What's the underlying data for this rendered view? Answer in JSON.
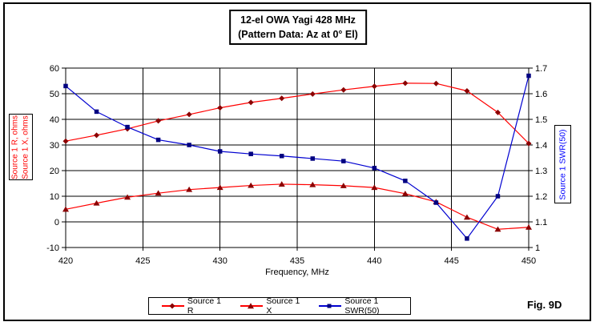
{
  "chart_data": {
    "type": "line",
    "title": "12-el OWA Yagi 428 MHz",
    "subtitle": "(Pattern Data: Az at 0° El)",
    "xlabel": "Frequency, MHz",
    "ylabel_left": [
      "Source 1 R, ohms",
      "Source 1 X, ohms"
    ],
    "ylabel_right": "Source 1 SWR(50)",
    "fig_label": "Fig. 9D",
    "x": [
      420,
      422,
      424,
      426,
      428,
      430,
      432,
      434,
      436,
      438,
      440,
      442,
      444,
      446,
      448,
      450
    ],
    "x_ticks": [
      420,
      425,
      430,
      435,
      440,
      445,
      450
    ],
    "xlim": [
      420,
      450
    ],
    "ylim_left": [
      -10,
      60
    ],
    "y_ticks_left": [
      60,
      50,
      40,
      30,
      20,
      10,
      0,
      -10
    ],
    "ylim_right": [
      1.0,
      1.7
    ],
    "y_ticks_right": [
      1.7,
      1.6,
      1.5,
      1.4,
      1.3,
      1.2,
      1.1,
      1.0
    ],
    "grid": true,
    "legend_position": "bottom",
    "colors": {
      "r_line": "#ff0000",
      "r_marker": "#8b0000",
      "x_line": "#ff0000",
      "x_marker": "#8b0000",
      "swr_line": "#0000d0",
      "swr_marker": "#000080",
      "axis_label_left": "#ff0000",
      "axis_label_right": "#0000ff",
      "grid_color": "#000000"
    },
    "series": [
      {
        "name": "Source 1 R",
        "axis": "left",
        "marker": "diamond",
        "line_color": "#ff0000",
        "marker_color": "#8b0000",
        "values": [
          31.5,
          33.8,
          36.3,
          39.4,
          41.9,
          44.5,
          46.6,
          48.2,
          49.9,
          51.5,
          52.9,
          54.1,
          54.0,
          51.1,
          42.7,
          30.6
        ]
      },
      {
        "name": "Source 1 X",
        "axis": "left",
        "marker": "triangle",
        "line_color": "#ff0000",
        "marker_color": "#8b0000",
        "values": [
          4.9,
          7.3,
          9.6,
          11.2,
          12.6,
          13.4,
          14.2,
          14.7,
          14.5,
          14.1,
          13.4,
          11.0,
          7.8,
          1.8,
          -2.9,
          -2.1
        ]
      },
      {
        "name": "Source 1 SWR(50)",
        "axis": "right",
        "marker": "square",
        "line_color": "#0000d0",
        "marker_color": "#000080",
        "values": [
          1.63,
          1.53,
          1.47,
          1.42,
          1.4,
          1.375,
          1.365,
          1.357,
          1.347,
          1.337,
          1.31,
          1.26,
          1.175,
          1.035,
          1.2,
          1.67
        ]
      }
    ]
  }
}
